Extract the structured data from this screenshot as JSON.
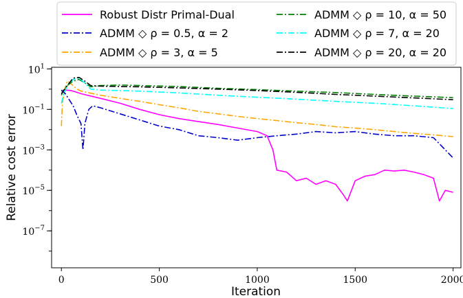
{
  "chart_data": {
    "type": "line",
    "xlabel": "Iteration",
    "ylabel": "Relative cost error",
    "y_scale": "log",
    "xlim": [
      -50,
      2040
    ],
    "ylim": [
      1.5e-09,
      12
    ],
    "x_ticks": [
      0,
      500,
      1000,
      1500,
      2000
    ],
    "x_tick_labels": [
      "0",
      "500",
      "1000",
      "1500",
      "2000"
    ],
    "y_ticks": [
      1e-07,
      1e-05,
      0.001,
      0.1,
      10
    ],
    "y_tick_labels": [
      {
        "base": "10",
        "exp": "−7"
      },
      {
        "base": "10",
        "exp": "−5"
      },
      {
        "base": "10",
        "exp": "−3"
      },
      {
        "base": "10",
        "exp": "−1"
      },
      {
        "base": "10",
        "exp": "1"
      }
    ],
    "grid": false,
    "legend_position": "top",
    "series": [
      {
        "name": "Robust Distr Primal-Dual",
        "color": "#ff00ff",
        "style": "solid",
        "x": [
          0,
          20,
          50,
          100,
          200,
          300,
          400,
          500,
          600,
          700,
          800,
          900,
          1000,
          1050,
          1080,
          1100,
          1150,
          1200,
          1250,
          1300,
          1350,
          1400,
          1440,
          1460,
          1500,
          1550,
          1600,
          1650,
          1700,
          1750,
          1800,
          1850,
          1900,
          1930,
          1960,
          2000
        ],
        "y": [
          0.8,
          0.9,
          0.85,
          0.6,
          0.35,
          0.2,
          0.1,
          0.055,
          0.035,
          0.025,
          0.018,
          0.012,
          0.008,
          0.005,
          0.001,
          0.0001,
          8e-05,
          3e-05,
          4e-05,
          2e-05,
          3e-05,
          2e-05,
          6e-06,
          3e-06,
          3e-05,
          5e-05,
          6e-05,
          0.0001,
          9e-05,
          0.0001,
          8e-05,
          6e-05,
          4e-05,
          3e-06,
          1e-05,
          8e-06
        ]
      },
      {
        "name": "ADMM ◇ ρ = 0.5, α = 2",
        "color": "#0000cd",
        "style": "dashdot",
        "x": [
          0,
          20,
          40,
          60,
          80,
          100,
          110,
          120,
          140,
          160,
          200,
          300,
          400,
          500,
          600,
          700,
          800,
          900,
          1000,
          1100,
          1200,
          1300,
          1400,
          1500,
          1600,
          1700,
          1800,
          1900,
          2000
        ],
        "y": [
          0.9,
          0.6,
          0.3,
          0.15,
          0.05,
          0.02,
          0.001,
          0.02,
          0.1,
          0.15,
          0.12,
          0.06,
          0.03,
          0.015,
          0.01,
          0.005,
          0.004,
          0.003,
          0.004,
          0.005,
          0.006,
          0.008,
          0.007,
          0.008,
          0.006,
          0.005,
          0.005,
          0.004,
          0.0004
        ]
      },
      {
        "name": "ADMM ◇ ρ = 3, α = 5",
        "color": "#ffa500",
        "style": "dashdot",
        "x": [
          0,
          5,
          15,
          30,
          50,
          80,
          100,
          200,
          300,
          400,
          500,
          600,
          700,
          800,
          900,
          1000,
          1100,
          1200,
          1300,
          1400,
          1500,
          1600,
          1700,
          1800,
          1900,
          2000
        ],
        "y": [
          0.015,
          0.2,
          0.8,
          2.5,
          1.8,
          1.0,
          0.8,
          0.5,
          0.35,
          0.25,
          0.17,
          0.12,
          0.08,
          0.06,
          0.045,
          0.035,
          0.028,
          0.022,
          0.018,
          0.014,
          0.012,
          0.01,
          0.008,
          0.0065,
          0.0055,
          0.0045
        ]
      },
      {
        "name": "ADMM ◇ ρ = 10, α = 50",
        "color": "#008000",
        "style": "dashdot",
        "x": [
          0,
          10,
          30,
          60,
          90,
          120,
          150,
          200,
          300,
          400,
          600,
          800,
          1000,
          1200,
          1400,
          1600,
          1800,
          2000
        ],
        "y": [
          0.5,
          0.9,
          1.5,
          2.5,
          3.0,
          2.0,
          1.3,
          1.5,
          1.6,
          1.5,
          1.35,
          1.1,
          0.95,
          0.8,
          0.68,
          0.55,
          0.45,
          0.38
        ]
      },
      {
        "name": "ADMM ◇ ρ = 7, α = 20",
        "color": "#00ffff",
        "style": "dashdot",
        "x": [
          0,
          10,
          30,
          60,
          90,
          120,
          150,
          200,
          300,
          400,
          600,
          800,
          1000,
          1200,
          1400,
          1600,
          1800,
          2000
        ],
        "y": [
          0.2,
          0.5,
          1.5,
          3.0,
          3.5,
          2.0,
          1.0,
          0.9,
          0.85,
          0.8,
          0.65,
          0.5,
          0.4,
          0.32,
          0.25,
          0.2,
          0.15,
          0.11
        ]
      },
      {
        "name": "ADMM ◇ ρ = 20, α = 20",
        "color": "#000000",
        "style": "dashdot",
        "x": [
          0,
          10,
          30,
          60,
          90,
          120,
          150,
          200,
          300,
          400,
          600,
          800,
          1000,
          1200,
          1400,
          1600,
          1800,
          2000
        ],
        "y": [
          0.6,
          0.8,
          1.5,
          3.5,
          3.8,
          2.5,
          1.5,
          1.4,
          1.35,
          1.3,
          1.15,
          1.0,
          0.85,
          0.7,
          0.55,
          0.45,
          0.37,
          0.3
        ]
      }
    ],
    "legend": [
      {
        "name": "Robust Distr Primal-Dual",
        "color": "#ff00ff",
        "style": "solid"
      },
      {
        "name": "ADMM ◇ ρ = 0.5, α = 2",
        "color": "#0000cd",
        "style": "dashdot"
      },
      {
        "name": "ADMM ◇ ρ = 3, α = 5",
        "color": "#ffa500",
        "style": "dashdot"
      },
      {
        "name": "ADMM ◇ ρ = 10, α = 50",
        "color": "#008000",
        "style": "dashdot"
      },
      {
        "name": "ADMM ◇ ρ = 7, α = 20",
        "color": "#00ffff",
        "style": "dashdot"
      },
      {
        "name": "ADMM ◇ ρ = 20, α = 20",
        "color": "#000000",
        "style": "dashdot"
      }
    ]
  }
}
